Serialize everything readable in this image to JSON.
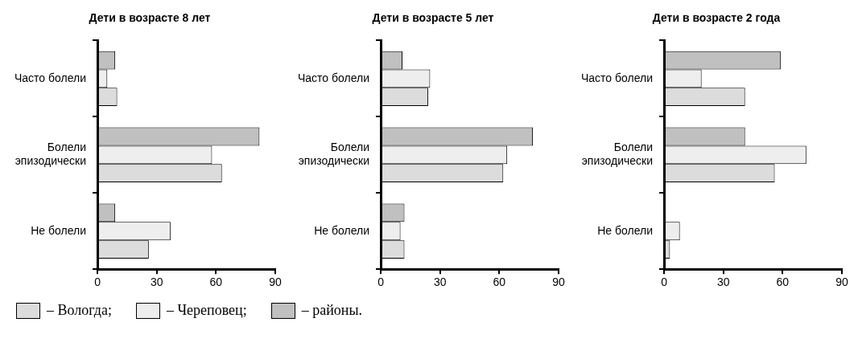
{
  "chart_data": [
    {
      "type": "bar",
      "orientation": "horizontal",
      "title": "Дети в возрасте 8 лет",
      "categories": [
        "Часто болели",
        "Болели эпизодически",
        "Не болели"
      ],
      "xlim": [
        0,
        90
      ],
      "xticks": [
        0,
        30,
        60,
        90
      ],
      "grid": false,
      "legend": "bottom",
      "series": [
        {
          "name": "– районы.",
          "color": "#c0c0c0",
          "values": [
            9,
            82,
            9
          ]
        },
        {
          "name": "– Череповец;",
          "color": "#eeeeee",
          "values": [
            5,
            58,
            37
          ]
        },
        {
          "name": "– Вологда;",
          "color": "#dcdcdc",
          "values": [
            10,
            63,
            26
          ]
        }
      ]
    },
    {
      "type": "bar",
      "orientation": "horizontal",
      "title": "Дети в возрасте 5 лет",
      "categories": [
        "Часто болели",
        "Болели эпизодически",
        "Не болели"
      ],
      "xlim": [
        0,
        90
      ],
      "xticks": [
        0,
        30,
        60,
        90
      ],
      "grid": false,
      "series": [
        {
          "color": "#c0c0c0",
          "values": [
            11,
            77,
            12
          ]
        },
        {
          "color": "#eeeeee",
          "values": [
            25,
            64,
            10
          ]
        },
        {
          "color": "#dcdcdc",
          "values": [
            24,
            62,
            12
          ]
        }
      ]
    },
    {
      "type": "bar",
      "orientation": "horizontal",
      "title": "Дети в возрасте 2 года",
      "categories": [
        "Часто болели",
        "Болели эпизодически",
        "Не болели"
      ],
      "xlim": [
        0,
        90
      ],
      "xticks": [
        0,
        30,
        60,
        90
      ],
      "grid": false,
      "series": [
        {
          "color": "#c0c0c0",
          "values": [
            59,
            41,
            0
          ]
        },
        {
          "color": "#eeeeee",
          "values": [
            19,
            72,
            8
          ]
        },
        {
          "color": "#dcdcdc",
          "values": [
            41,
            56,
            3
          ]
        }
      ]
    }
  ]
}
